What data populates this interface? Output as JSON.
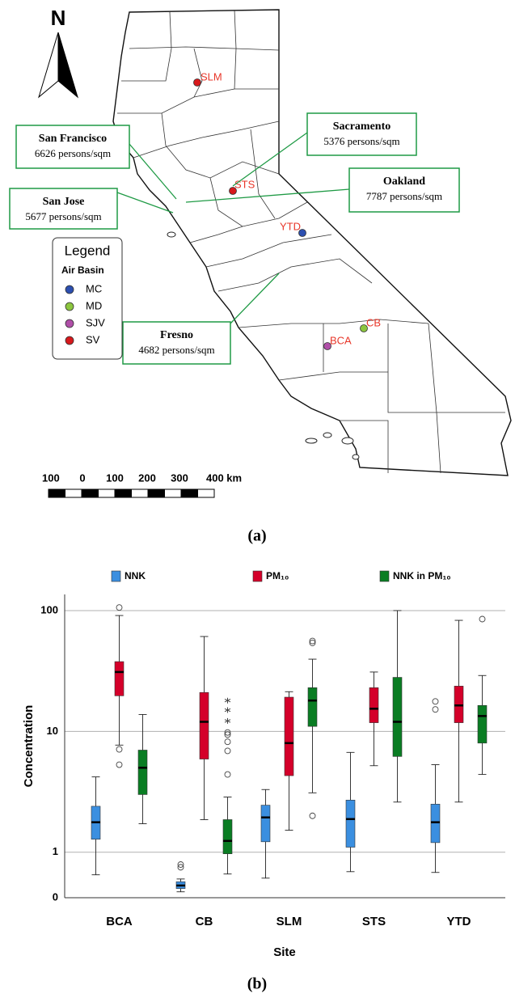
{
  "map": {
    "north": "N",
    "sites": [
      {
        "label": "SLM",
        "color": "#d7191c"
      },
      {
        "label": "STS",
        "color": "#d7191c"
      },
      {
        "label": "YTD",
        "color": "#2c4fb0"
      },
      {
        "label": "CB",
        "color": "#8cc63f"
      },
      {
        "label": "BCA",
        "color": "#b04fa8"
      }
    ],
    "callouts": [
      {
        "city": "San Francisco",
        "density": "6626 persons/sqm"
      },
      {
        "city": "Sacramento",
        "density": "5376 persons/sqm"
      },
      {
        "city": "Oakland",
        "density": "7787 persons/sqm"
      },
      {
        "city": "San Jose",
        "density": "5677 persons/sqm"
      },
      {
        "city": "Fresno",
        "density": "4682 persons/sqm"
      }
    ],
    "legend": {
      "title": "Legend",
      "subtitle": "Air Basin",
      "items": [
        {
          "label": "MC",
          "color": "#2c4fb0"
        },
        {
          "label": "MD",
          "color": "#8cc63f"
        },
        {
          "label": "SJV",
          "color": "#b04fa8"
        },
        {
          "label": "SV",
          "color": "#d7191c"
        }
      ]
    },
    "scale_labels": [
      "100",
      "0",
      "100",
      "200",
      "300",
      "400 km"
    ]
  },
  "captions": [
    "(a)",
    "(b)"
  ],
  "chart_data": {
    "type": "box",
    "x_label": "Site",
    "y_label": "Concentration",
    "log_scale": true,
    "grid": true,
    "categories": [
      "BCA",
      "CB",
      "SLM",
      "STS",
      "YTD"
    ],
    "ylim": [
      0.42,
      136
    ],
    "yticks": [
      {
        "value": 0.42,
        "label": "0"
      },
      1,
      10,
      100
    ],
    "series": [
      {
        "name": "NNK",
        "color": "#3b8fe0",
        "min": [
          0.65,
          0.47,
          0.61,
          0.69,
          0.68
        ],
        "q1": [
          1.28,
          0.5,
          1.22,
          1.1,
          1.2
        ],
        "median": [
          1.77,
          0.53,
          1.94,
          1.88,
          1.77
        ],
        "q3": [
          2.4,
          0.57,
          2.45,
          2.7,
          2.5
        ],
        "max": [
          4.2,
          0.6,
          3.3,
          6.7,
          5.3
        ],
        "outliers": [
          [],
          [
            0.79,
            0.75
          ],
          [],
          [],
          [
            17.7,
            15.2
          ]
        ],
        "extremes": [
          [],
          [],
          [],
          [],
          []
        ]
      },
      {
        "name": "PM₁₀",
        "color": "#d4002a",
        "min": [
          7.7,
          1.86,
          1.52,
          5.2,
          2.6
        ],
        "q1": [
          19.7,
          5.9,
          4.3,
          11.8,
          11.8
        ],
        "median": [
          31,
          12,
          8,
          15.4,
          16.4
        ],
        "q3": [
          37.8,
          21,
          19.2,
          23,
          23.7
        ],
        "max": [
          91,
          61,
          21.3,
          31,
          83
        ],
        "outliers": [
          [
            106,
            7.1,
            5.3
          ],
          [],
          [],
          [],
          []
        ],
        "extremes": [
          [],
          [],
          [],
          [],
          []
        ]
      },
      {
        "name": "NNK in PM₁₀",
        "color": "#0a7d23",
        "min": [
          1.72,
          0.66,
          3.1,
          2.6,
          4.4
        ],
        "q1": [
          3.0,
          0.97,
          11,
          6.2,
          8.0
        ],
        "median": [
          5.0,
          1.24,
          18,
          12,
          13.4
        ],
        "q3": [
          7.0,
          1.86,
          23,
          28,
          16.4
        ],
        "max": [
          13.8,
          2.86,
          39.6,
          100,
          29
        ],
        "outliers": [
          [],
          [
            9.8,
            9.4,
            8.2,
            6.9,
            4.4
          ],
          [
            56,
            54,
            2.0
          ],
          [],
          [
            85
          ]
        ],
        "extremes": [
          [],
          [
            18,
            15,
            12.2
          ],
          [],
          [],
          []
        ]
      }
    ]
  }
}
